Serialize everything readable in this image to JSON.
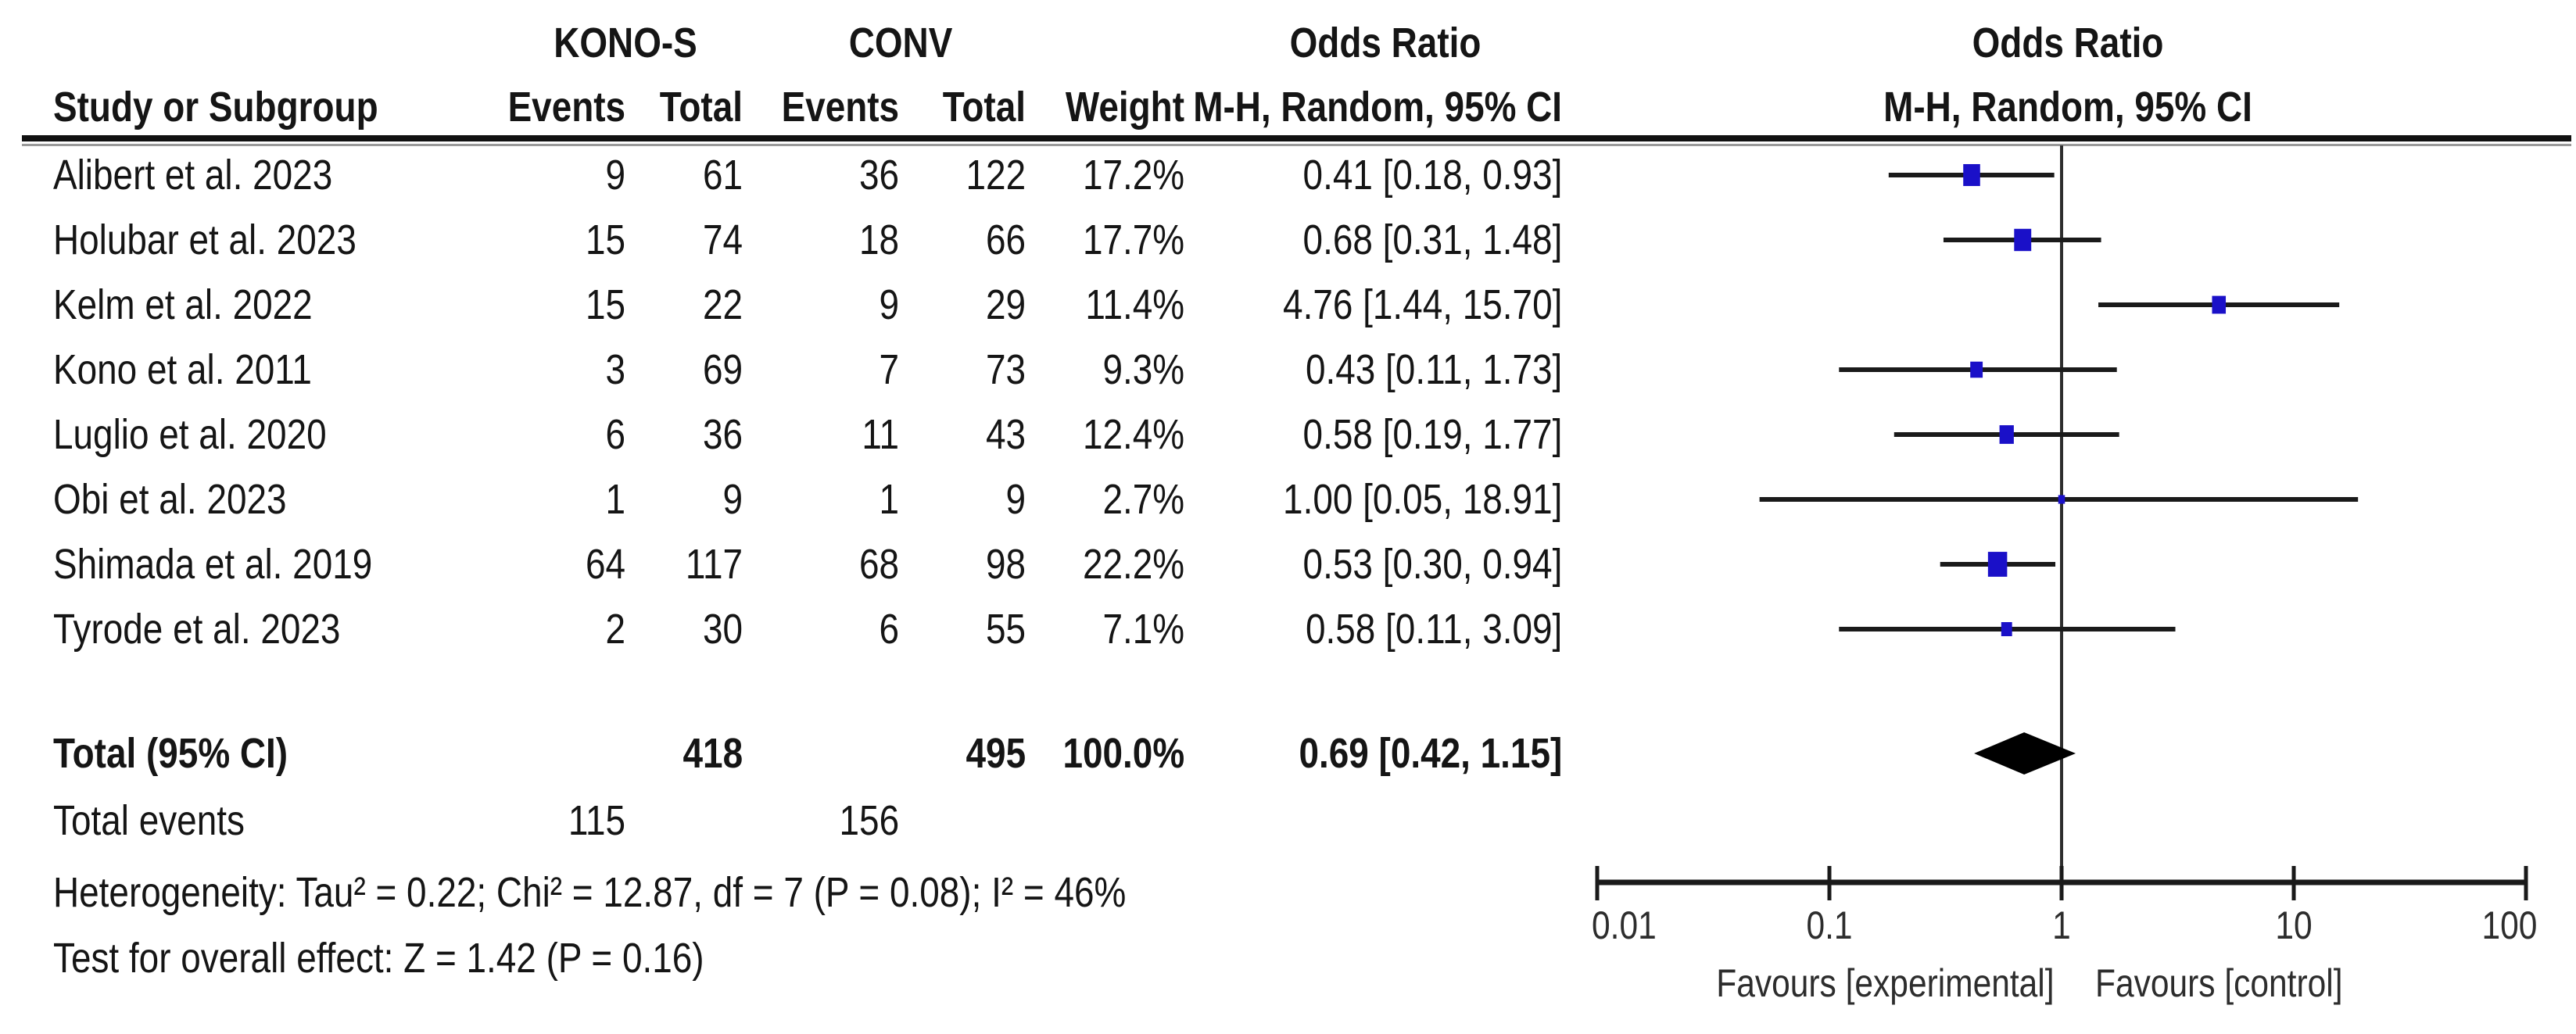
{
  "header": {
    "group1": "KONO-S",
    "group2": "CONV",
    "study_col": "Study or Subgroup",
    "events_col": "Events",
    "total_col": "Total",
    "weight_col": "Weight",
    "or_title": "Odds Ratio",
    "mh_sub": "M-H, Random, 95% CI"
  },
  "chart_data": {
    "type": "forest",
    "effect_measure": "Odds Ratio",
    "method": "M-H, Random, 95% CI",
    "x_scale": "log10",
    "x_ticks": [
      0.01,
      0.1,
      1,
      10,
      100
    ],
    "x_tick_labels": [
      "0.01",
      "0.1",
      "1",
      "10",
      "100"
    ],
    "favours_left": "Favours [experimental]",
    "favours_right": "Favours [control]",
    "marker_color": "#1A10C8",
    "line_color": "#1a1a1a",
    "studies": [
      {
        "name": "Alibert et al. 2023",
        "events1": 9,
        "total1": 61,
        "events2": 36,
        "total2": 122,
        "weight": "17.2%",
        "weight_pct": 17.2,
        "or": 0.41,
        "ci_low": 0.18,
        "ci_high": 0.93,
        "or_text": "0.41 [0.18, 0.93]"
      },
      {
        "name": "Holubar et al. 2023",
        "events1": 15,
        "total1": 74,
        "events2": 18,
        "total2": 66,
        "weight": "17.7%",
        "weight_pct": 17.7,
        "or": 0.68,
        "ci_low": 0.31,
        "ci_high": 1.48,
        "or_text": "0.68 [0.31, 1.48]"
      },
      {
        "name": "Kelm et al. 2022",
        "events1": 15,
        "total1": 22,
        "events2": 9,
        "total2": 29,
        "weight": "11.4%",
        "weight_pct": 11.4,
        "or": 4.76,
        "ci_low": 1.44,
        "ci_high": 15.7,
        "or_text": "4.76 [1.44, 15.70]"
      },
      {
        "name": "Kono et al. 2011",
        "events1": 3,
        "total1": 69,
        "events2": 7,
        "total2": 73,
        "weight": "9.3%",
        "weight_pct": 9.3,
        "or": 0.43,
        "ci_low": 0.11,
        "ci_high": 1.73,
        "or_text": "0.43 [0.11, 1.73]"
      },
      {
        "name": "Luglio et al. 2020",
        "events1": 6,
        "total1": 36,
        "events2": 11,
        "total2": 43,
        "weight": "12.4%",
        "weight_pct": 12.4,
        "or": 0.58,
        "ci_low": 0.19,
        "ci_high": 1.77,
        "or_text": "0.58 [0.19, 1.77]"
      },
      {
        "name": "Obi et al. 2023",
        "events1": 1,
        "total1": 9,
        "events2": 1,
        "total2": 9,
        "weight": "2.7%",
        "weight_pct": 2.7,
        "or": 1.0,
        "ci_low": 0.05,
        "ci_high": 18.91,
        "or_text": "1.00 [0.05, 18.91]"
      },
      {
        "name": "Shimada et al. 2019",
        "events1": 64,
        "total1": 117,
        "events2": 68,
        "total2": 98,
        "weight": "22.2%",
        "weight_pct": 22.2,
        "or": 0.53,
        "ci_low": 0.3,
        "ci_high": 0.94,
        "or_text": "0.53 [0.30, 0.94]"
      },
      {
        "name": "Tyrode et al. 2023",
        "events1": 2,
        "total1": 30,
        "events2": 6,
        "total2": 55,
        "weight": "7.1%",
        "weight_pct": 7.1,
        "or": 0.58,
        "ci_low": 0.11,
        "ci_high": 3.09,
        "or_text": "0.58 [0.11, 3.09]"
      }
    ],
    "total": {
      "label": "Total (95% CI)",
      "total1": 418,
      "total2": 495,
      "weight": "100.0%",
      "or": 0.69,
      "ci_low": 0.42,
      "ci_high": 1.15,
      "or_text": "0.69 [0.42, 1.15]"
    },
    "total_events": {
      "label": "Total events",
      "events1": 115,
      "events2": 156
    },
    "heterogeneity": "Heterogeneity: Tau² = 0.22; Chi² = 12.87, df = 7 (P = 0.08); I² = 46%",
    "overall_effect": "Test for overall effect: Z = 1.42 (P = 0.16)"
  }
}
